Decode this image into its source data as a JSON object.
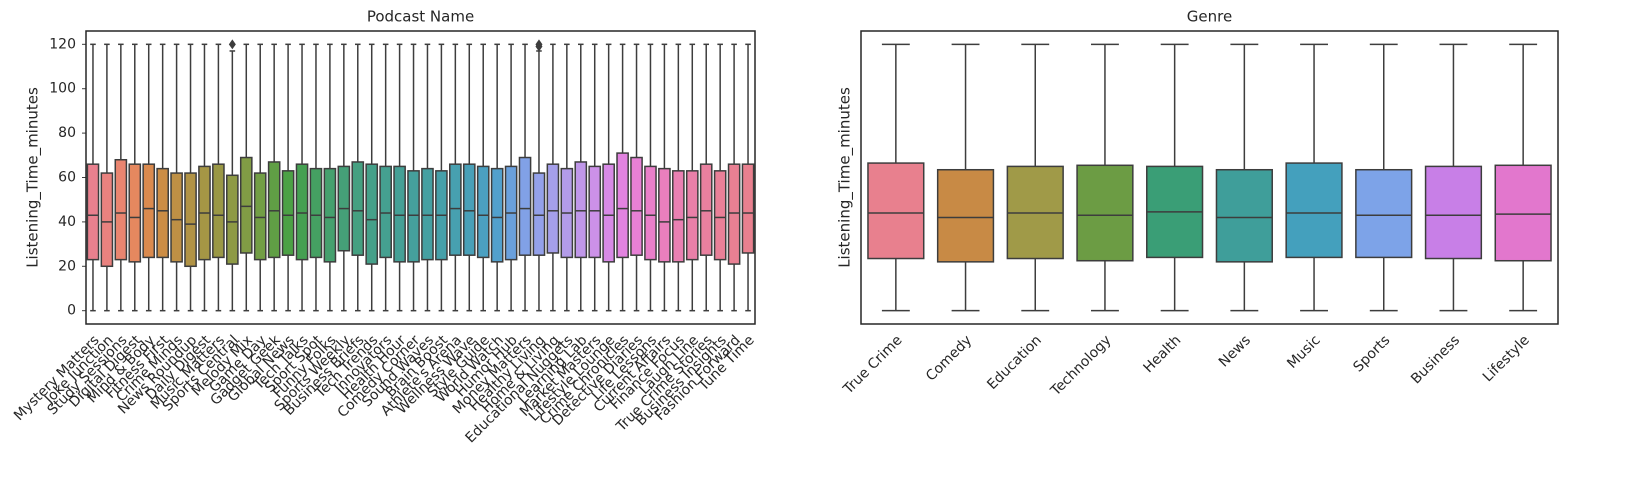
{
  "chart_data": [
    {
      "type": "box",
      "title": "Podcast Name",
      "ylabel": "Listening_Time_minutes",
      "categories": [
        "Mystery Matters",
        "Joke Junction",
        "Study Sessions",
        "Digital Digest",
        "Mind & Body",
        "Fitness First",
        "Crime Minds",
        "News Roundup",
        "Daily Digest",
        "Music Matters",
        "Sports Central",
        "Melody Mix",
        "Game Day",
        "Gadget Geek",
        "Global News",
        "Tech Talks",
        "Sport Spot",
        "Funny Folks",
        "Sports Weekly",
        "Business Briefs",
        "Tech Trends",
        "Innovators",
        "Health Hour",
        "Comedy Corner",
        "Sound Waves",
        "Brain Boost",
        "Athlete's Arena",
        "Wellness Wave",
        "Style Guide",
        "World Watch",
        "Humor Hub",
        "Money Matters",
        "Healthy Living",
        "Home & Living",
        "Educational Nuggets",
        "Learning Lab",
        "Market Masters",
        "Lifestyle Lounge",
        "Crime Chronicles",
        "Detective Diaries",
        "Life Lessons",
        "Current Affairs",
        "Finance Focus",
        "Laugh Line",
        "True Crime Stories",
        "Business Insights",
        "Fashion Forward",
        "Tune Time"
      ],
      "colors": [
        "#e9808e",
        "#e9827f",
        "#e98570",
        "#e5885f",
        "#da8a4e",
        "#cc8d45",
        "#be9045",
        "#b19345",
        "#a59645",
        "#9a9845",
        "#8e9a45",
        "#819c45",
        "#729e45",
        "#609f45",
        "#4ca145",
        "#45a052",
        "#45a062",
        "#45a06e",
        "#45a078",
        "#45a081",
        "#45a089",
        "#45a090",
        "#45a096",
        "#45a09c",
        "#45a0a2",
        "#46a0a9",
        "#47a0b0",
        "#49a0b8",
        "#4ba0c1",
        "#52a0cc",
        "#6aa0dc",
        "#81a1e6",
        "#94a1ea",
        "#a59fea",
        "#b39ce9",
        "#c097e9",
        "#cc91e8",
        "#d88ae6",
        "#e283e0",
        "#e780d5",
        "#e97fc9",
        "#e97fbd",
        "#e980b2",
        "#e980a8",
        "#e9809f",
        "#e98098",
        "#e98093",
        "#e9808f"
      ],
      "whislo": [
        0,
        0,
        0,
        0,
        0,
        0,
        0,
        0,
        0,
        0,
        0,
        0,
        0,
        0,
        0,
        0,
        0,
        0,
        0,
        0,
        0,
        0,
        0,
        0,
        0,
        0,
        0,
        0,
        0,
        0,
        0,
        0,
        0,
        0,
        0,
        0,
        0,
        0,
        0,
        0,
        0,
        0,
        0,
        0,
        0,
        0,
        0,
        0
      ],
      "q1": [
        23,
        20,
        23,
        22,
        24,
        24,
        22,
        20,
        23,
        24,
        21,
        26,
        23,
        24,
        25,
        23,
        24,
        22,
        27,
        25,
        21,
        24,
        22,
        22,
        23,
        23,
        25,
        25,
        24,
        22,
        23,
        25,
        25,
        26,
        24,
        24,
        24,
        22,
        24,
        25,
        23,
        22,
        22,
        23,
        25,
        23,
        21,
        26
      ],
      "median": [
        43,
        40,
        44,
        42,
        46,
        45,
        41,
        39,
        44,
        43,
        40,
        47,
        42,
        45,
        43,
        44,
        43,
        42,
        46,
        45,
        41,
        44,
        43,
        43,
        43,
        43,
        46,
        45,
        43,
        42,
        44,
        46,
        43,
        45,
        44,
        45,
        45,
        43,
        46,
        45,
        43,
        40,
        41,
        42,
        45,
        42,
        44,
        44
      ],
      "q3": [
        66,
        62,
        68,
        66,
        66,
        64,
        62,
        62,
        65,
        66,
        61,
        69,
        62,
        67,
        63,
        66,
        64,
        64,
        65,
        67,
        66,
        65,
        65,
        63,
        64,
        63,
        66,
        66,
        65,
        64,
        65,
        69,
        62,
        66,
        64,
        67,
        65,
        66,
        71,
        69,
        65,
        64,
        63,
        63,
        66,
        63,
        66,
        66
      ],
      "whishi": [
        120,
        120,
        120,
        120,
        120,
        120,
        120,
        120,
        120,
        120,
        117,
        120,
        120,
        120,
        120,
        120,
        120,
        120,
        120,
        120,
        120,
        120,
        120,
        120,
        120,
        120,
        120,
        120,
        120,
        120,
        120,
        120,
        117,
        120,
        120,
        120,
        120,
        120,
        120,
        120,
        120,
        120,
        120,
        120,
        120,
        120,
        120,
        120
      ],
      "fliers": [
        [],
        [],
        [],
        [],
        [],
        [],
        [],
        [],
        [],
        [],
        [
          120
        ],
        [],
        [],
        [],
        [],
        [],
        [],
        [],
        [],
        [],
        [],
        [],
        [],
        [],
        [],
        [],
        [],
        [],
        [],
        [],
        [],
        [],
        [
          119,
          120
        ],
        [],
        [],
        [],
        [],
        [],
        [],
        [],
        [],
        [],
        [],
        [],
        [],
        [],
        [],
        []
      ],
      "ylim": [
        -6,
        126
      ],
      "yticks": [
        0,
        20,
        40,
        60,
        80,
        100,
        120
      ]
    },
    {
      "type": "box",
      "title": "Genre",
      "ylabel": "Listening_Time_minutes",
      "categories": [
        "True Crime",
        "Comedy",
        "Education",
        "Technology",
        "Health",
        "News",
        "Music",
        "Sports",
        "Business",
        "Lifestyle"
      ],
      "colors": [
        "#e8808e",
        "#c88a45",
        "#a09a48",
        "#6c9c44",
        "#3a9e76",
        "#3f9e9a",
        "#44a0bd",
        "#7da3e8",
        "#c87fe7",
        "#e277cd"
      ],
      "whislo": [
        0,
        0,
        0,
        0,
        0,
        0,
        0,
        0,
        0,
        0
      ],
      "q1": [
        23.5,
        22,
        23.5,
        22.5,
        24,
        22,
        24,
        24,
        23.5,
        22.5
      ],
      "median": [
        44,
        42,
        44,
        43,
        44.5,
        42,
        44,
        43,
        43,
        43.5
      ],
      "q3": [
        66.5,
        63.5,
        65,
        65.5,
        65,
        63.5,
        66.5,
        63.5,
        65,
        65.5
      ],
      "whishi": [
        120,
        120,
        120,
        120,
        120,
        120,
        120,
        120,
        120,
        120
      ],
      "fliers": [
        [],
        [],
        [],
        [],
        [],
        [],
        [],
        [],
        [],
        []
      ],
      "ylim": [
        -6,
        126
      ]
    }
  ]
}
